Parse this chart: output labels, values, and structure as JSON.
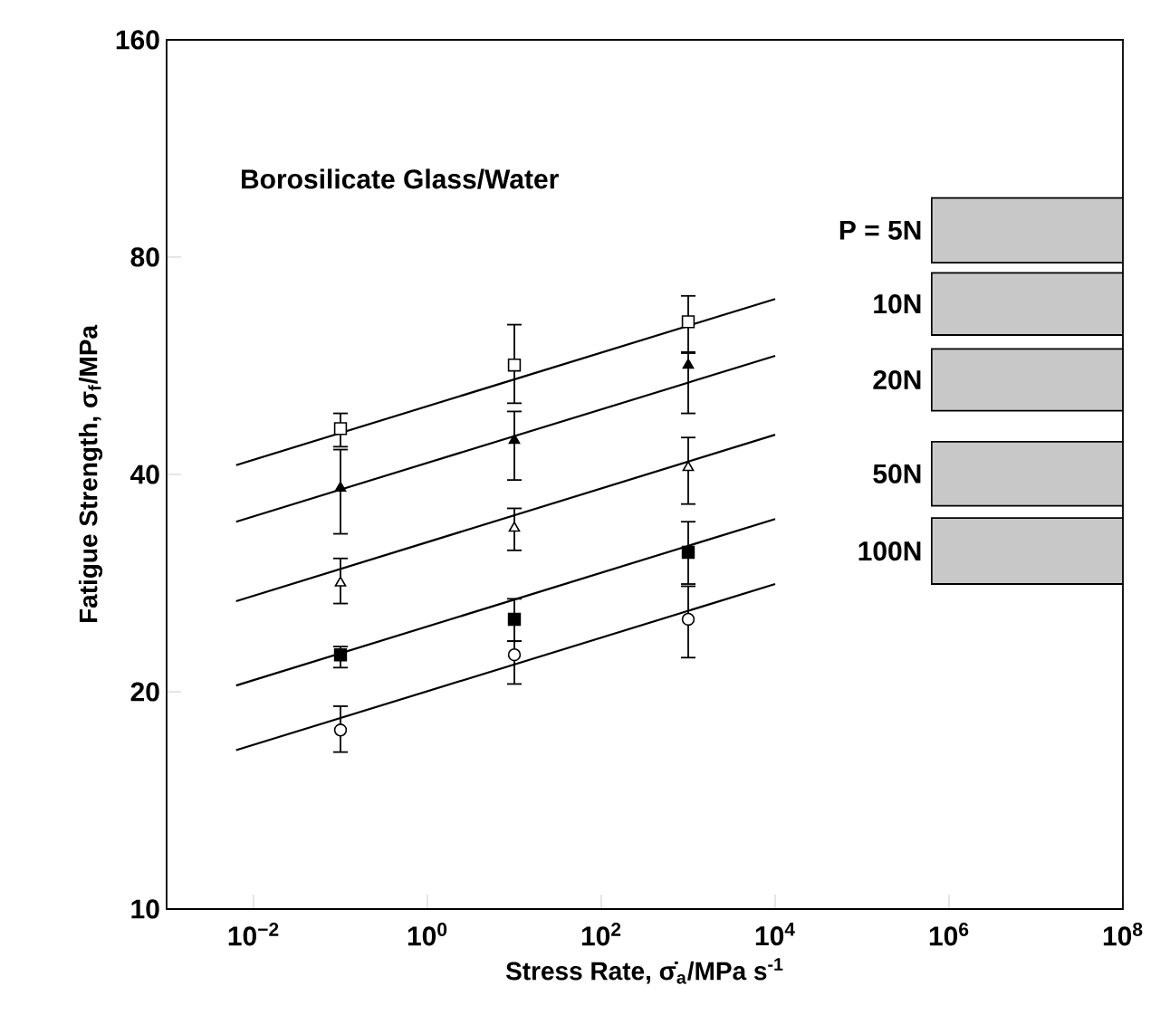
{
  "chart_data": {
    "type": "scatter",
    "xlabel": "Stress Rate, σ̇$_{a}$/MPa s$^{-1}$",
    "ylabel": "Fatigue Strength, σ$_{f}$/MPa",
    "annotations": [
      "Borosilicate Glass/Water"
    ],
    "log": "xy",
    "grid": false,
    "line_style": "solid",
    "xlim": [
      0.001,
      100000000
    ],
    "ylim": [
      10,
      160
    ],
    "xticks": [
      {
        "value": 0.01,
        "label": "10$^{−2}$"
      },
      {
        "value": 1,
        "label": "10$^{0}$"
      },
      {
        "value": 100,
        "label": "10$^{2}$"
      },
      {
        "value": 10000,
        "label": "10$^{4}$"
      },
      {
        "value": 1000000,
        "label": "10$^{6}$"
      },
      {
        "value": 100000000,
        "label": "10$^{8}$"
      }
    ],
    "yticks": [
      10,
      20,
      40,
      80,
      160
    ],
    "series": [
      {
        "marker": "square",
        "color": "#ffffff",
        "x": [
          0.1,
          10,
          1000
        ],
        "values": [
          46.3,
          56.7,
          65.1
        ],
        "errors": [
          [
            43.7,
            48.6
          ],
          [
            50.2,
            64.5
          ],
          [
            59.1,
            70.7
          ]
        ]
      },
      {
        "marker": "triangle",
        "color": "#000000",
        "x": [
          0.1,
          10,
          1000
        ],
        "values": [
          38.3,
          44.6,
          56.7
        ],
        "errors": [
          [
            33.1,
            43.3
          ],
          [
            39.3,
            48.9
          ],
          [
            48.6,
            58.9
          ]
        ]
      },
      {
        "marker": "triangle",
        "color": "#ffffff",
        "x": [
          0.1,
          10,
          1000
        ],
        "values": [
          28.3,
          33.7,
          40.9
        ],
        "errors": [
          [
            26.5,
            30.6
          ],
          [
            31.4,
            35.9
          ],
          [
            36.4,
            45.0
          ]
        ]
      },
      {
        "marker": "square",
        "color": "#000000",
        "x": [
          0.1,
          10,
          1000
        ],
        "values": [
          22.5,
          25.2,
          31.2
        ],
        "errors": [
          [
            21.6,
            23.1
          ],
          [
            23.5,
            26.9
          ],
          [
            28.2,
            34.4
          ]
        ]
      },
      {
        "marker": "circle",
        "color": "#ffffff",
        "x": [
          0.1,
          10,
          1000
        ],
        "values": [
          17.7,
          22.5,
          25.2
        ],
        "errors": [
          [
            16.5,
            19.1
          ],
          [
            20.5,
            23.5
          ],
          [
            22.3,
            28.0
          ]
        ]
      },
      {
        "type": "line",
        "color": "#000000",
        "x": [
          0.0063,
          10000
        ],
        "values": [
          41.2,
          70
        ]
      },
      {
        "type": "line",
        "color": "#000000",
        "x": [
          0.0063,
          10000
        ],
        "values": [
          34.4,
          58.4
        ]
      },
      {
        "type": "line",
        "color": "#000000",
        "x": [
          0.0063,
          10000
        ],
        "values": [
          26.7,
          45.4
        ]
      },
      {
        "type": "line",
        "color": "#000000",
        "x": [
          0.0063,
          10000
        ],
        "values": [
          20.4,
          34.7
        ]
      },
      {
        "type": "line",
        "color": "#000000",
        "x": [
          0.0063,
          10000
        ],
        "values": [
          16.6,
          28.2
        ]
      }
    ],
    "bands": [
      {
        "axis": "y",
        "from": 78.6,
        "to": 96.6,
        "label": "P = 5N",
        "color": "#c8c8c8"
      },
      {
        "axis": "y",
        "from": 62.4,
        "to": 76.1,
        "label": "10N",
        "color": "#c8c8c8"
      },
      {
        "axis": "y",
        "from": 49.0,
        "to": 59.7,
        "label": "20N",
        "color": "#c8c8c8"
      },
      {
        "axis": "y",
        "from": 36.2,
        "to": 44.4,
        "label": "50N",
        "color": "#c8c8c8"
      },
      {
        "axis": "y",
        "from": 28.2,
        "to": 34.8,
        "label": "100N",
        "color": "#c8c8c8"
      }
    ]
  }
}
